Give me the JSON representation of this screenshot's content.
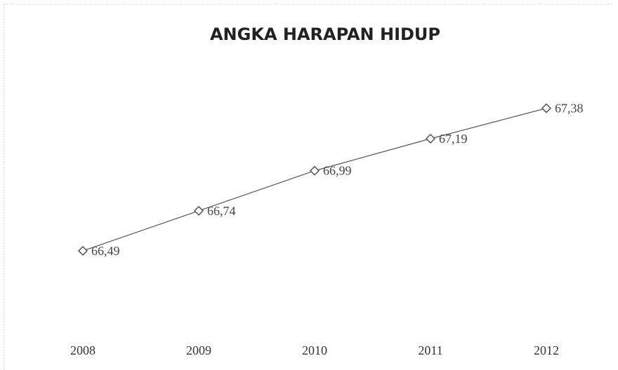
{
  "chart_data": {
    "type": "line",
    "title": "ANGKA HARAPAN HIDUP",
    "categories": [
      "2008",
      "2009",
      "2010",
      "2011",
      "2012"
    ],
    "series": [
      {
        "name": "Angka Harapan Hidup",
        "color": "#555555",
        "values": [
          66.49,
          66.74,
          66.99,
          67.19,
          67.38
        ],
        "value_labels": [
          "66,49",
          "66,74",
          "66,99",
          "67,19",
          "67,38"
        ]
      }
    ],
    "ylim": [
      66,
      67.5
    ]
  }
}
